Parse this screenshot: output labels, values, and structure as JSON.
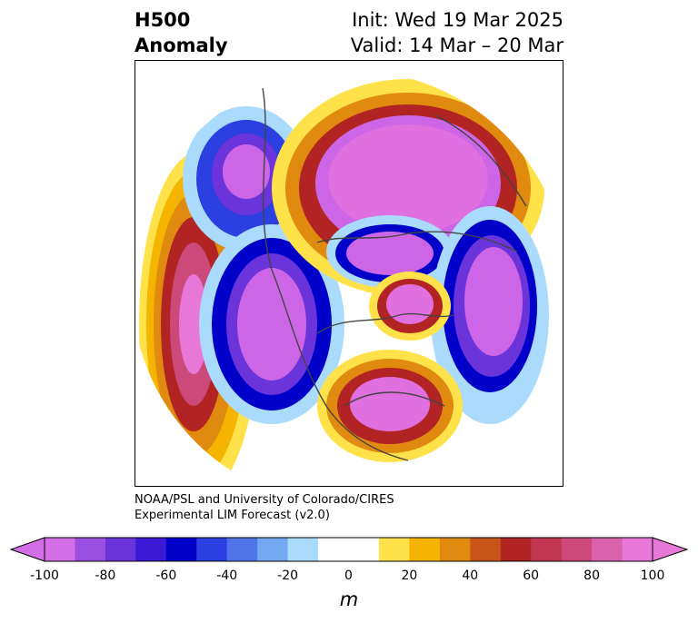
{
  "title": {
    "left_line1": "H500",
    "left_line2": "Anomaly",
    "right_line1": "Init: Wed 19 Mar 2025",
    "right_line2": "Valid: 14 Mar – 20 Mar"
  },
  "credit": {
    "line1": "NOAA/PSL and University of Colorado/CIRES",
    "line2": "Experimental LIM Forecast (v2.0)"
  },
  "colorbar": {
    "unit": "m",
    "ticks": [
      "-100",
      "-80",
      "-60",
      "-40",
      "-20",
      "0",
      "20",
      "40",
      "60",
      "80",
      "100"
    ],
    "colors": [
      "#d46ee6",
      "#9a4fe0",
      "#6a34da",
      "#3a18d4",
      "#0000c8",
      "#2c3fe0",
      "#4e74e8",
      "#74a8f0",
      "#aadbfc",
      "#ffffff",
      "#ffffff",
      "#ffe24a",
      "#f4b400",
      "#e08a10",
      "#c8561a",
      "#b22424",
      "#c13650",
      "#cc4a7a",
      "#da62ad",
      "#e878d8"
    ]
  },
  "colors": {
    "positive_core": "#e070e0",
    "negative_core": "#cc66e6",
    "coast": "#444444"
  }
}
